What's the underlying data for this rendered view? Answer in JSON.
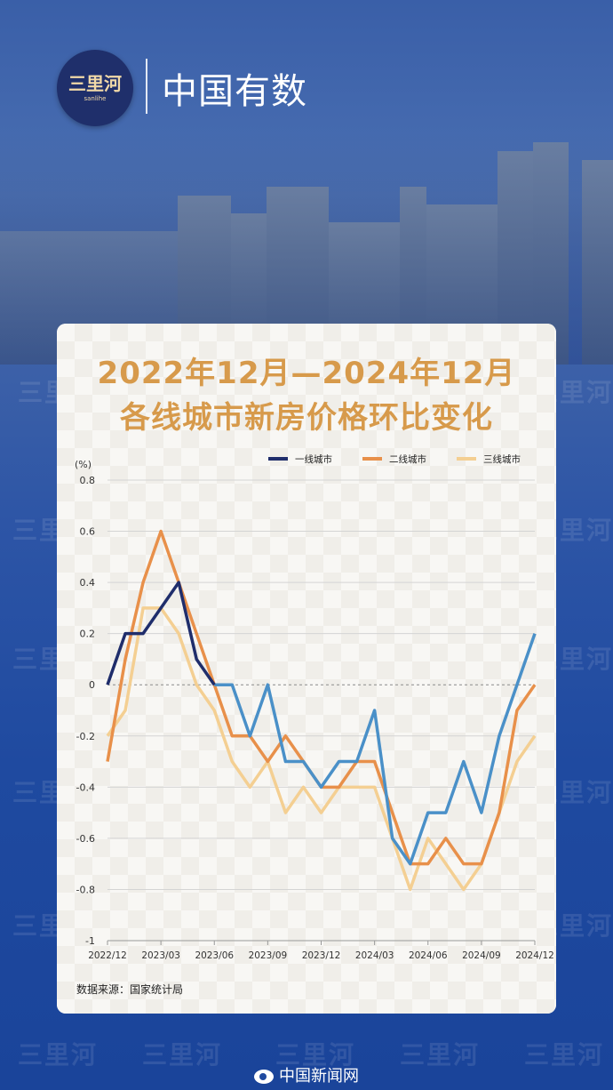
{
  "header": {
    "logo_text": "三里河",
    "logo_sub": "sanlihe",
    "brand": "中国有数"
  },
  "watermark_text": "三里河",
  "card": {
    "title_line1": "2022年12月—2024年12月",
    "title_line2": "各线城市新房价格环比变化",
    "source": "数据来源：国家统计局"
  },
  "footer": {
    "text": "中国新闻网"
  },
  "colors": {
    "tier1": "#1f2d6b",
    "tier2": "#e8904a",
    "tier3": "#f4cf92",
    "tier1_late": "#4a90c8",
    "title": "#d79a4b"
  },
  "chart_data": {
    "type": "line",
    "ylabel": "(%)",
    "ylim": [
      -1,
      0.8
    ],
    "yticks": [
      0.8,
      0.6,
      0.4,
      0.2,
      0,
      -0.2,
      -0.4,
      -0.6,
      -0.8,
      -1
    ],
    "ytick_labels": [
      "0.8",
      "0.6",
      "0.4",
      "0.2",
      "0",
      "-0.2",
      "-0.4",
      "-0.6",
      "-0.8",
      "-1"
    ],
    "x": [
      "2022/12",
      "2023/01",
      "2023/02",
      "2023/03",
      "2023/04",
      "2023/05",
      "2023/06",
      "2023/07",
      "2023/08",
      "2023/09",
      "2023/10",
      "2023/11",
      "2023/12",
      "2024/01",
      "2024/02",
      "2024/03",
      "2024/04",
      "2024/05",
      "2024/06",
      "2024/07",
      "2024/08",
      "2024/09",
      "2024/10",
      "2024/11",
      "2024/12"
    ],
    "xtick_labels": [
      "2022/12",
      "2023/03",
      "2023/06",
      "2023/09",
      "2023/12",
      "2024/03",
      "2024/06",
      "2024/09",
      "2024/12"
    ],
    "grid": true,
    "legend": "top-right",
    "series": [
      {
        "name": "一线城市",
        "values": [
          0,
          0.2,
          0.2,
          0.3,
          0.4,
          0.1,
          0,
          0,
          -0.2,
          0,
          -0.3,
          -0.3,
          -0.4,
          -0.3,
          -0.3,
          -0.1,
          -0.6,
          -0.7,
          -0.5,
          -0.5,
          -0.3,
          -0.5,
          -0.2,
          0,
          0.2
        ]
      },
      {
        "name": "二线城市",
        "values": [
          -0.3,
          0.1,
          0.4,
          0.6,
          0.4,
          0.2,
          0,
          -0.2,
          -0.2,
          -0.3,
          -0.2,
          -0.3,
          -0.4,
          -0.4,
          -0.3,
          -0.3,
          -0.5,
          -0.7,
          -0.7,
          -0.6,
          -0.7,
          -0.7,
          -0.5,
          -0.1,
          0
        ]
      },
      {
        "name": "三线城市",
        "values": [
          -0.2,
          -0.1,
          0.3,
          0.3,
          0.2,
          0,
          -0.1,
          -0.3,
          -0.4,
          -0.3,
          -0.5,
          -0.4,
          -0.5,
          -0.4,
          -0.4,
          -0.4,
          -0.6,
          -0.8,
          -0.6,
          -0.7,
          -0.8,
          -0.7,
          -0.5,
          -0.3,
          -0.2
        ]
      }
    ]
  }
}
